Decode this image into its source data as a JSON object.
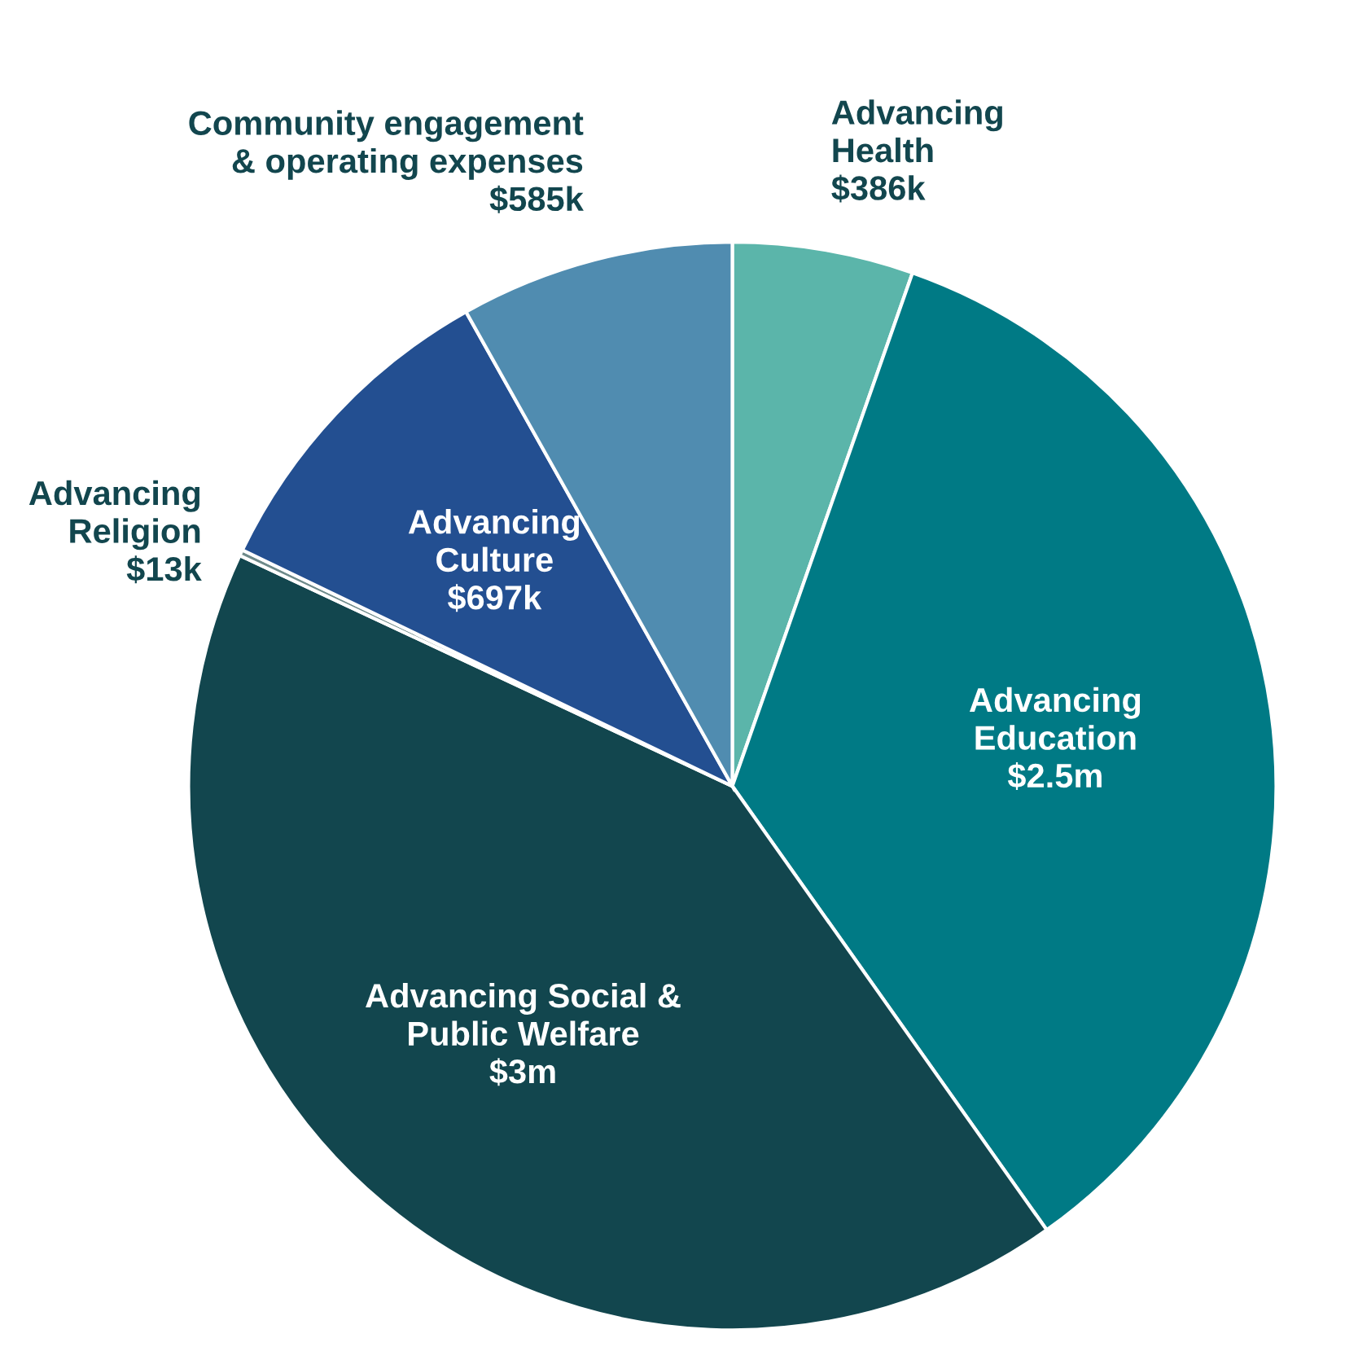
{
  "chart_data": {
    "type": "pie",
    "categories": [
      "Advancing\nHealth",
      "Advancing\nEducation",
      "Advancing Social &\nPublic Welfare",
      "Advancing\nReligion",
      "Advancing\nCulture",
      "Community engagement\n& operating expenses"
    ],
    "values": [
      386000,
      2500000,
      3000000,
      13000,
      697000,
      585000
    ],
    "value_labels": [
      "$386k",
      "$2.5m",
      "$3m",
      "$13k",
      "$697k",
      "$585k"
    ],
    "colors": [
      "#5bb5aa",
      "#007a85",
      "#12464e",
      "#6e8a8a",
      "#234f91",
      "#508cb0"
    ]
  }
}
